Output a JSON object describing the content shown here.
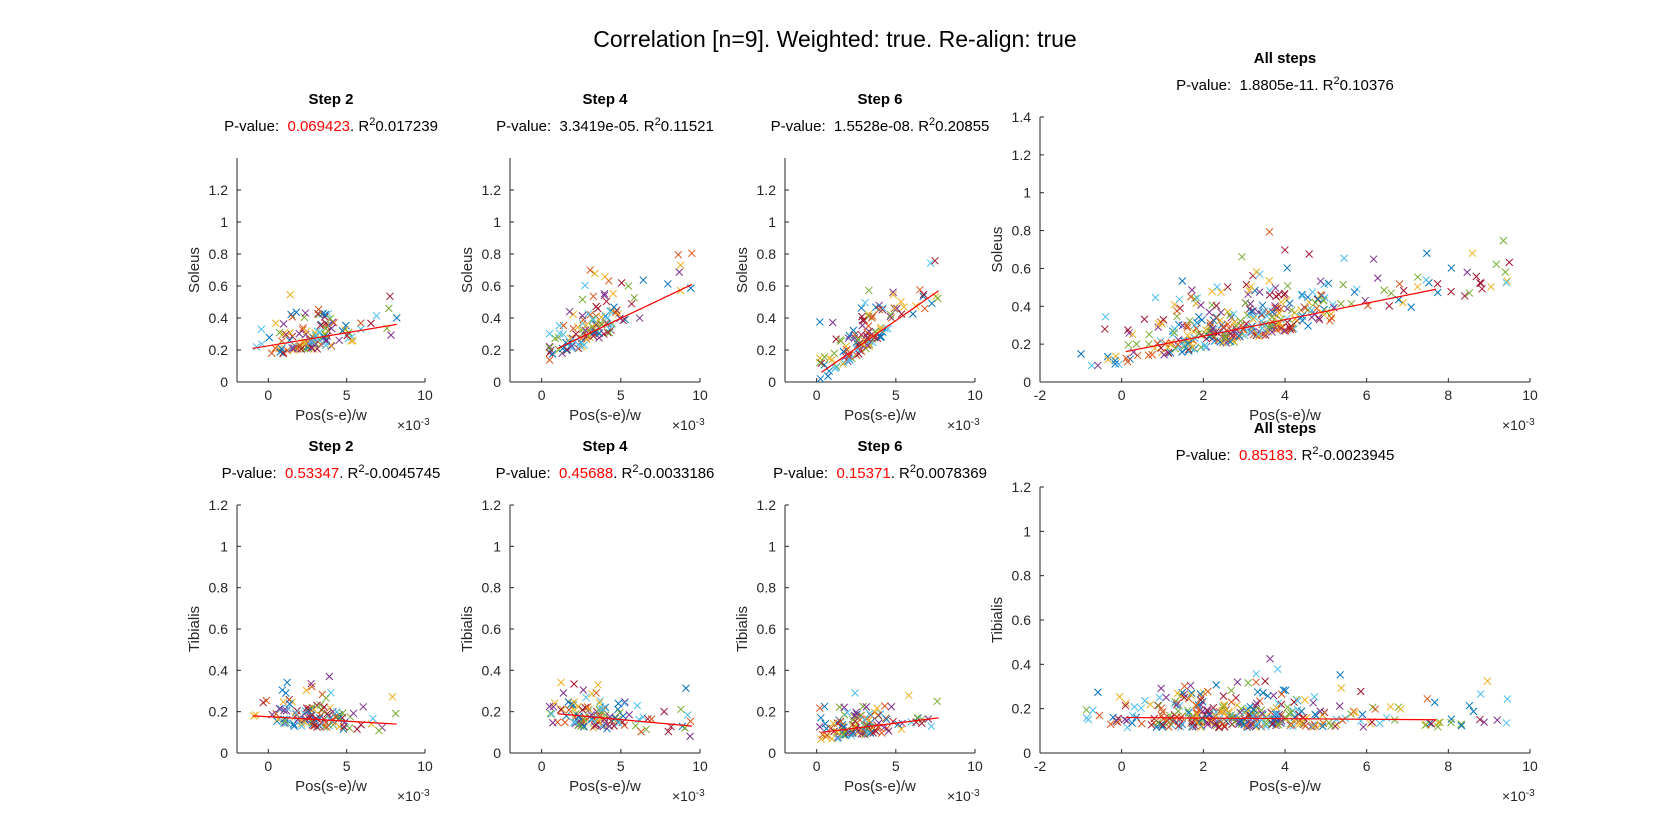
{
  "figure": {
    "suptitle": "Correlation [n=9]. Weighted: true. Re-align: true"
  },
  "colors": {
    "mark_palette": [
      "#0072BD",
      "#D95319",
      "#EDB120",
      "#7E2F8E",
      "#77AC30",
      "#4DBEEE",
      "#A2142F"
    ],
    "fit_line": "#FF0000",
    "pvalue_nonsig": "#FF0000"
  },
  "chart_data": [
    {
      "type": "scatter",
      "title": "Step 2",
      "p_label": "P-value:",
      "p_value": "0.069423",
      "p_nonsig": true,
      "r_label": "R",
      "r2_value": "0.017239",
      "xlabel": "Pos(s-e)/w",
      "ylabel": "Soleus",
      "xlim": [
        -2,
        10
      ],
      "ylim": [
        0,
        1.4
      ],
      "xticks": [
        "0",
        "5",
        "10"
      ],
      "yticks": [
        "0",
        "0.2",
        "0.4",
        "0.6",
        "0.8",
        "1",
        "1.2"
      ],
      "x_exponent": "×10",
      "x_exponent_power": "-3",
      "fit": {
        "x": [
          -1.0,
          8.2
        ],
        "y": [
          0.21,
          0.36
        ]
      },
      "points_seed": 11,
      "points_n": 120,
      "points_model": {
        "xrange": [
          -1.0,
          8.2
        ],
        "xmode": 2.8,
        "yslope": 0.017,
        "yint": 0.21,
        "ysd": 0.16,
        "ymax": 0.82
      }
    },
    {
      "type": "scatter",
      "title": "Step 4",
      "p_label": "P-value:",
      "p_value": "3.3419e-05",
      "p_nonsig": false,
      "r_label": "R",
      "r2_value": "0.11521",
      "xlabel": "Pos(s-e)/w",
      "ylabel": "Soleus",
      "xlim": [
        -2,
        10
      ],
      "ylim": [
        0,
        1.4
      ],
      "xticks": [
        "0",
        "5",
        "10"
      ],
      "yticks": [
        "0",
        "0.2",
        "0.4",
        "0.6",
        "0.8",
        "1",
        "1.2"
      ],
      "x_exponent": "×10",
      "x_exponent_power": "-3",
      "fit": {
        "x": [
          1.0,
          9.5
        ],
        "y": [
          0.21,
          0.61
        ]
      },
      "points_seed": 23,
      "points_n": 120,
      "points_model": {
        "xrange": [
          0.5,
          9.5
        ],
        "xmode": 3.0,
        "yslope": 0.047,
        "yint": 0.16,
        "ysd": 0.17,
        "ymax": 1.3
      }
    },
    {
      "type": "scatter",
      "title": "Step 6",
      "p_label": "P-value:",
      "p_value": "1.5528e-08",
      "p_nonsig": false,
      "r_label": "R",
      "r2_value": "0.20855",
      "xlabel": "Pos(s-e)/w",
      "ylabel": "Soleus",
      "xlim": [
        -2,
        10
      ],
      "ylim": [
        0,
        1.4
      ],
      "xticks": [
        "0",
        "5",
        "10"
      ],
      "yticks": [
        "0",
        "0.2",
        "0.4",
        "0.6",
        "0.8",
        "1",
        "1.2"
      ],
      "x_exponent": "×10",
      "x_exponent_power": "-3",
      "fit": {
        "x": [
          0.3,
          7.7
        ],
        "y": [
          0.06,
          0.57
        ]
      },
      "points_seed": 37,
      "points_n": 120,
      "points_model": {
        "xrange": [
          0.2,
          7.7
        ],
        "xmode": 2.6,
        "yslope": 0.069,
        "yint": 0.04,
        "ysd": 0.15,
        "ymax": 0.92
      }
    },
    {
      "type": "scatter",
      "title": "All steps",
      "p_label": "P-value:",
      "p_value": "1.8805e-11",
      "p_nonsig": false,
      "r_label": "R",
      "r2_value": "0.10376",
      "xlabel": "Pos(s-e)/w",
      "ylabel": "Soleus",
      "xlim": [
        -2,
        10
      ],
      "ylim": [
        0,
        1.4
      ],
      "xticks": [
        "-2",
        "0",
        "2",
        "4",
        "6",
        "8",
        "10"
      ],
      "yticks": [
        "0",
        "0.2",
        "0.4",
        "0.6",
        "0.8",
        "1",
        "1.2",
        "1.4"
      ],
      "x_exponent": "×10",
      "x_exponent_power": "-3",
      "fit": {
        "x": [
          0.1,
          7.7
        ],
        "y": [
          0.16,
          0.49
        ]
      },
      "points_seed": 41,
      "points_n": 360,
      "points_model": {
        "xrange": [
          -1.0,
          9.5
        ],
        "xmode": 2.8,
        "yslope": 0.043,
        "yint": 0.15,
        "ysd": 0.17,
        "ymax": 1.3
      }
    },
    {
      "type": "scatter",
      "title": "Step 2",
      "p_label": "P-value:",
      "p_value": "0.53347",
      "p_nonsig": true,
      "r_label": "R",
      "r2_value": "-0.0045745",
      "xlabel": "Pos(s-e)/w",
      "ylabel": "Tibialis",
      "xlim": [
        -2,
        10
      ],
      "ylim": [
        0,
        1.2
      ],
      "xticks": [
        "0",
        "5",
        "10"
      ],
      "yticks": [
        "0",
        "0.2",
        "0.4",
        "0.6",
        "0.8",
        "1",
        "1.2"
      ],
      "x_exponent": "×10",
      "x_exponent_power": "-3",
      "fit": {
        "x": [
          -1.0,
          8.2
        ],
        "y": [
          0.18,
          0.14
        ]
      },
      "points_seed": 53,
      "points_n": 120,
      "points_model": {
        "xrange": [
          -1.0,
          8.2
        ],
        "xmode": 2.8,
        "yslope": -0.004,
        "yint": 0.17,
        "ysd": 0.1,
        "ymax": 0.82
      }
    },
    {
      "type": "scatter",
      "title": "Step 4",
      "p_label": "P-value:",
      "p_value": "0.45688",
      "p_nonsig": true,
      "r_label": "R",
      "r2_value": "-0.0033186",
      "xlabel": "Pos(s-e)/w",
      "ylabel": "Tibialis",
      "xlim": [
        -2,
        10
      ],
      "ylim": [
        0,
        1.2
      ],
      "xticks": [
        "0",
        "5",
        "10"
      ],
      "yticks": [
        "0",
        "0.2",
        "0.4",
        "0.6",
        "0.8",
        "1",
        "1.2"
      ],
      "x_exponent": "×10",
      "x_exponent_power": "-3",
      "fit": {
        "x": [
          1.0,
          9.5
        ],
        "y": [
          0.19,
          0.13
        ]
      },
      "points_seed": 67,
      "points_n": 120,
      "points_model": {
        "xrange": [
          0.5,
          9.5
        ],
        "xmode": 3.0,
        "yslope": -0.007,
        "yint": 0.18,
        "ysd": 0.1,
        "ymax": 1.0
      }
    },
    {
      "type": "scatter",
      "title": "Step 6",
      "p_label": "P-value:",
      "p_value": "0.15371",
      "p_nonsig": true,
      "r_label": "R",
      "r2_value": "0.0078369",
      "xlabel": "Pos(s-e)/w",
      "ylabel": "Tibialis",
      "xlim": [
        -2,
        10
      ],
      "ylim": [
        0,
        1.2
      ],
      "xticks": [
        "0",
        "5",
        "10"
      ],
      "yticks": [
        "0",
        "0.2",
        "0.4",
        "0.6",
        "0.8",
        "1",
        "1.2"
      ],
      "x_exponent": "×10",
      "x_exponent_power": "-3",
      "fit": {
        "x": [
          0.3,
          7.7
        ],
        "y": [
          0.1,
          0.17
        ]
      },
      "points_seed": 79,
      "points_n": 120,
      "points_model": {
        "xrange": [
          0.2,
          7.7
        ],
        "xmode": 2.6,
        "yslope": 0.009,
        "yint": 0.09,
        "ysd": 0.09,
        "ymax": 0.83
      }
    },
    {
      "type": "scatter",
      "title": "All steps",
      "p_label": "P-value:",
      "p_value": "0.85183",
      "p_nonsig": true,
      "r_label": "R",
      "r2_value": "-0.0023945",
      "xlabel": "Pos(s-e)/w",
      "ylabel": "Tibialis",
      "xlim": [
        -2,
        10
      ],
      "ylim": [
        0,
        1.2
      ],
      "xticks": [
        "-2",
        "0",
        "2",
        "4",
        "6",
        "8",
        "10"
      ],
      "yticks": [
        "0",
        "0.2",
        "0.4",
        "0.6",
        "0.8",
        "1",
        "1.2"
      ],
      "x_exponent": "×10",
      "x_exponent_power": "-3",
      "fit": {
        "x": [
          0.1,
          7.7
        ],
        "y": [
          0.16,
          0.15
        ]
      },
      "points_seed": 97,
      "points_n": 360,
      "points_model": {
        "xrange": [
          -1.0,
          9.5
        ],
        "xmode": 2.8,
        "yslope": 0.0,
        "yint": 0.15,
        "ysd": 0.1,
        "ymax": 1.0
      }
    }
  ]
}
